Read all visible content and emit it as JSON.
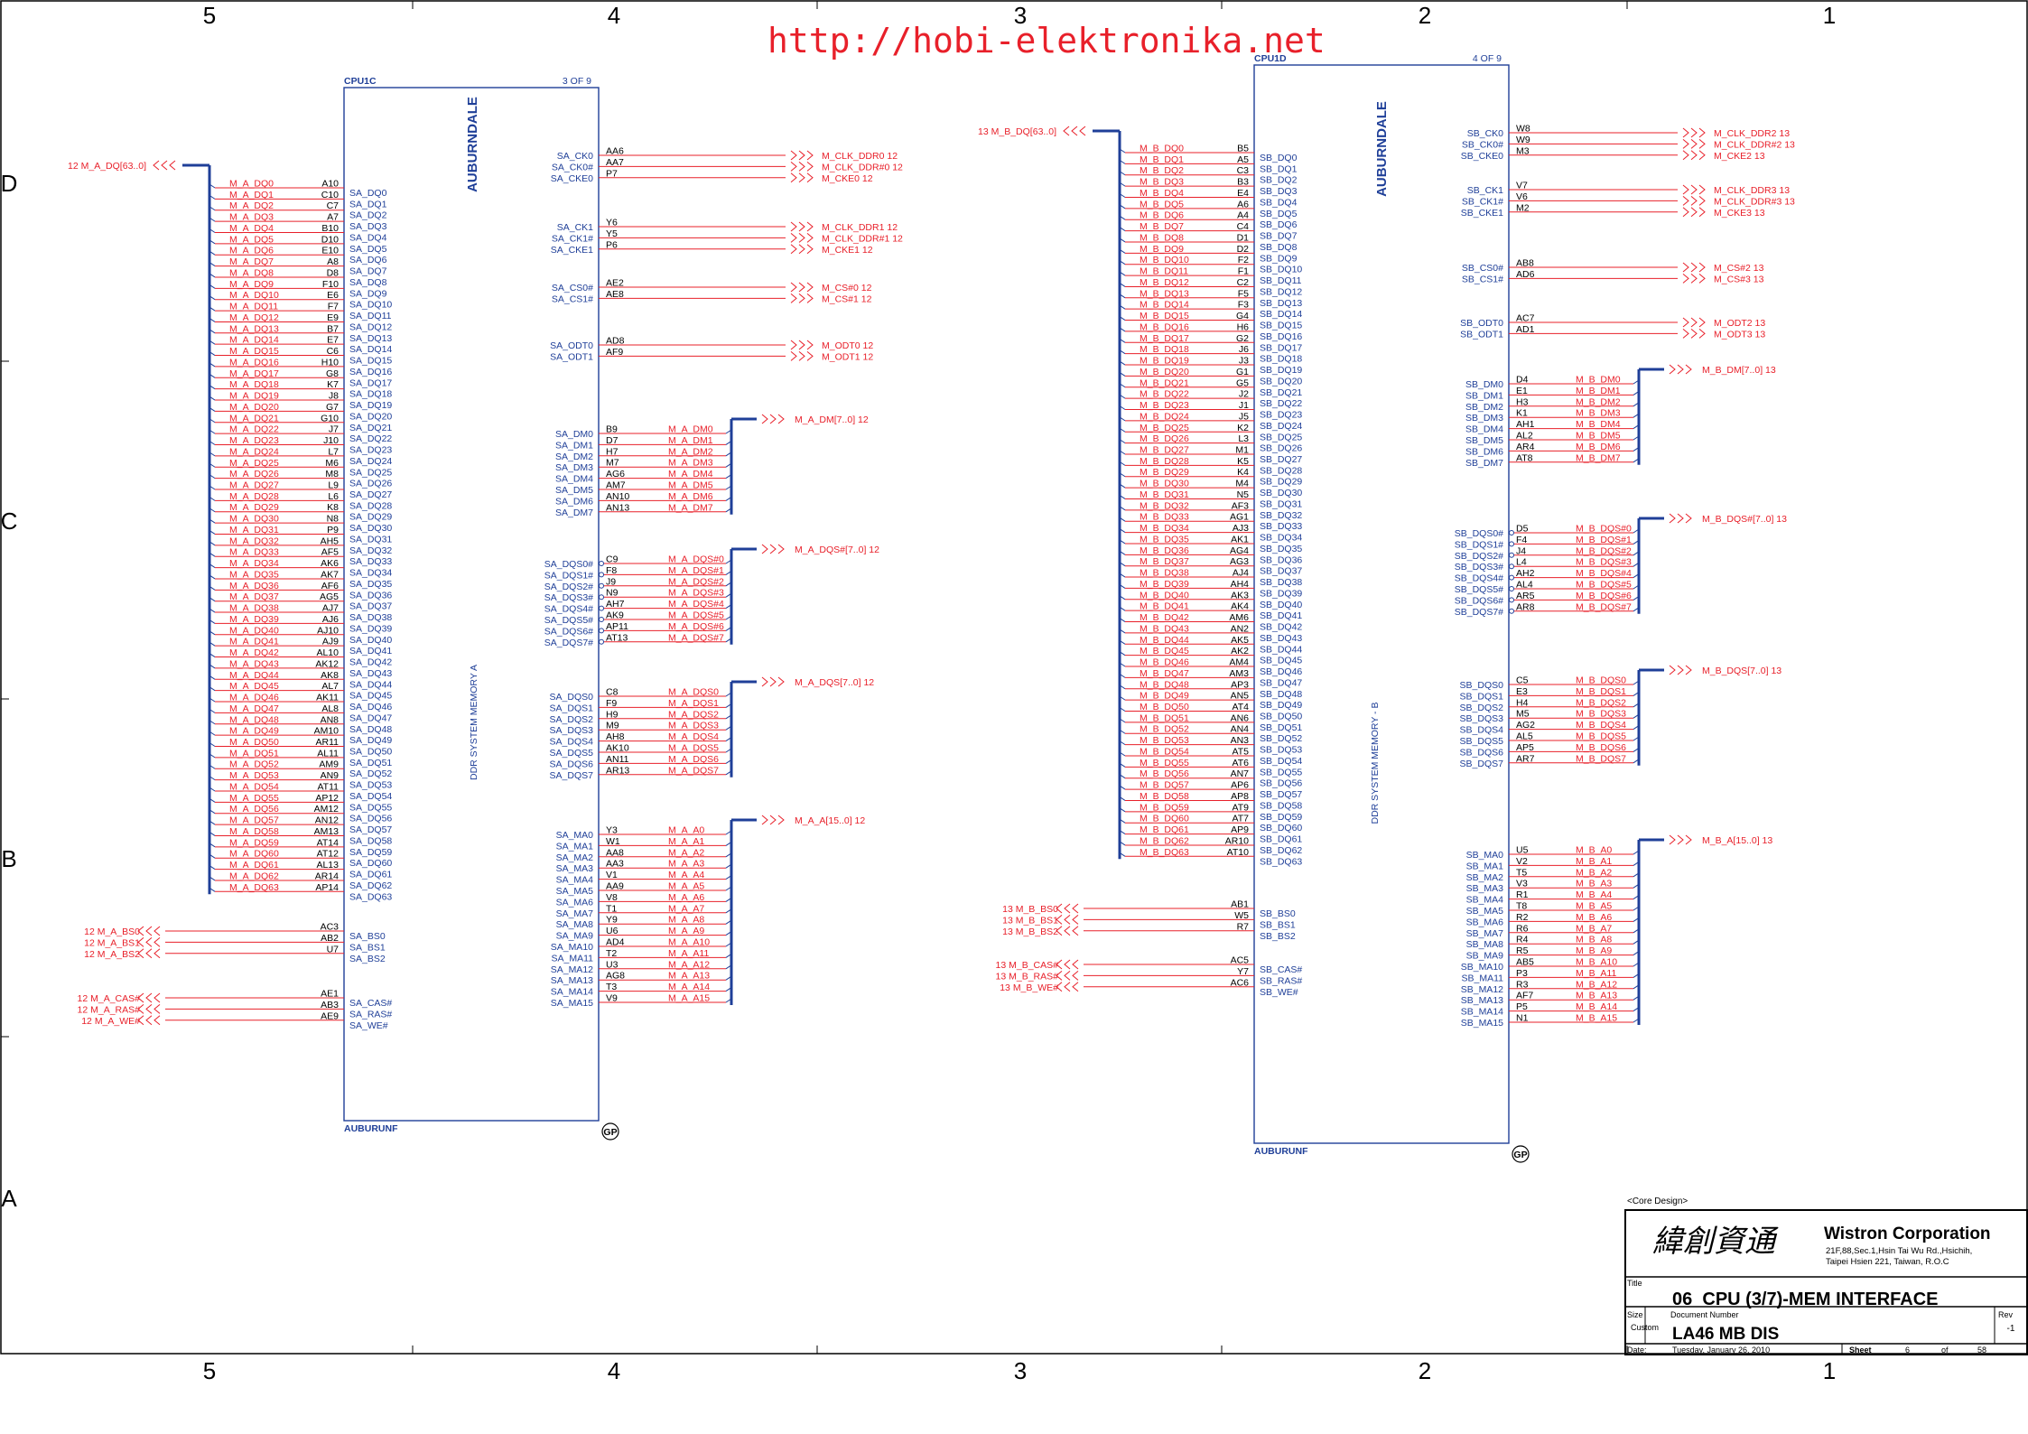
{
  "watermark": "http://hobi-elektronika.net",
  "zones": {
    "columns": [
      "5",
      "4",
      "3",
      "2",
      "1"
    ],
    "rows": [
      "D",
      "C",
      "B",
      "A"
    ]
  },
  "chA": {
    "ref": "CPU1C",
    "part": "3   OF  9",
    "footer": "AUBURUNF",
    "vertical": "AUBURNDALE",
    "title": "DDR  SYSTEM  MEMORY  A",
    "gp": "GP",
    "bus_in": "12  M_A_DQ[63..0]",
    "dq_balls": [
      "A10",
      "C10",
      "C7",
      "A7",
      "B10",
      "D10",
      "E10",
      "A8",
      "D8",
      "F10",
      "E6",
      "F7",
      "E9",
      "B7",
      "E7",
      "C6",
      "H10",
      "G8",
      "K7",
      "J8",
      "G7",
      "G10",
      "J7",
      "J10",
      "L7",
      "M6",
      "M8",
      "L9",
      "L6",
      "K8",
      "N8",
      "P9",
      "AH5",
      "AF5",
      "AK6",
      "AK7",
      "AF6",
      "AG5",
      "AJ7",
      "AJ6",
      "AJ10",
      "AJ9",
      "AL10",
      "AK12",
      "AK8",
      "AL7",
      "AK11",
      "AL8",
      "AN8",
      "AM10",
      "AR11",
      "AL11",
      "AM9",
      "AN9",
      "AT11",
      "AP12",
      "AM12",
      "AN12",
      "AM13",
      "AT14",
      "AT12",
      "AL13",
      "AR14",
      "AP14"
    ],
    "bs": {
      "nets": [
        "12  M_A_BS0",
        "12  M_A_BS1",
        "12  M_A_BS2"
      ],
      "balls": [
        "AC3",
        "AB2",
        "U7"
      ],
      "pins": [
        "SA_BS0",
        "SA_BS1",
        "SA_BS2"
      ]
    },
    "cmd": {
      "nets": [
        "12  M_A_CAS#",
        "12  M_A_RAS#",
        "12  M_A_WE#"
      ],
      "balls": [
        "AE1",
        "AB3",
        "AE9"
      ],
      "pins": [
        "SA_CAS#",
        "SA_RAS#",
        "SA_WE#"
      ]
    },
    "clk": [
      {
        "pins": [
          "SA_CK0",
          "SA_CK0#",
          "SA_CKE0"
        ],
        "balls": [
          "AA6",
          "AA7",
          "P7"
        ],
        "nets": [
          "M_CLK_DDR0  12",
          "M_CLK_DDR#0  12",
          "M_CKE0  12"
        ]
      },
      {
        "pins": [
          "SA_CK1",
          "SA_CK1#",
          "SA_CKE1"
        ],
        "balls": [
          "Y6",
          "Y5",
          "P6"
        ],
        "nets": [
          "M_CLK_DDR1  12",
          "M_CLK_DDR#1  12",
          "M_CKE1  12"
        ]
      },
      {
        "pins": [
          "SA_CS0#",
          "SA_CS1#"
        ],
        "balls": [
          "AE2",
          "AE8"
        ],
        "nets": [
          "M_CS#0  12",
          "M_CS#1  12"
        ]
      },
      {
        "pins": [
          "SA_ODT0",
          "SA_ODT1"
        ],
        "balls": [
          "AD8",
          "AF9"
        ],
        "nets": [
          "M_ODT0  12",
          "M_ODT1  12"
        ]
      }
    ],
    "dm": {
      "balls": [
        "B9",
        "D7",
        "H7",
        "M7",
        "AG6",
        "AM7",
        "AN10",
        "AN13"
      ],
      "bus": "M_A_DM[7..0]  12"
    },
    "dqsn": {
      "balls": [
        "C9",
        "F8",
        "J9",
        "N9",
        "AH7",
        "AK9",
        "AP11",
        "AT13"
      ],
      "bus": "M_A_DQS#[7..0]  12"
    },
    "dqs": {
      "balls": [
        "C8",
        "F9",
        "H9",
        "M9",
        "AH8",
        "AK10",
        "AN11",
        "AR13"
      ],
      "bus": "M_A_DQS[7..0]  12"
    },
    "ma": {
      "balls": [
        "Y3",
        "W1",
        "AA8",
        "AA3",
        "V1",
        "AA9",
        "V8",
        "T1",
        "Y9",
        "U6",
        "AD4",
        "T2",
        "U3",
        "AG8",
        "T3",
        "V9"
      ],
      "bus": "M_A_A[15..0]  12"
    }
  },
  "chB": {
    "ref": "CPU1D",
    "part": "4   OF  9",
    "footer": "AUBURUNF",
    "vertical": "AUBURNDALE",
    "title": "DDR  SYSTEM  MEMORY  -  B",
    "gp": "GP",
    "bus_in": "13  M_B_DQ[63..0]",
    "dq_balls": [
      "B5",
      "A5",
      "C3",
      "B3",
      "E4",
      "A6",
      "A4",
      "C4",
      "D1",
      "D2",
      "F2",
      "F1",
      "C2",
      "F5",
      "F3",
      "G4",
      "H6",
      "G2",
      "J6",
      "J3",
      "G1",
      "G5",
      "J2",
      "J1",
      "J5",
      "K2",
      "L3",
      "M1",
      "K5",
      "K4",
      "M4",
      "N5",
      "AF3",
      "AG1",
      "AJ3",
      "AK1",
      "AG4",
      "AG3",
      "AJ4",
      "AH4",
      "AK3",
      "AK4",
      "AM6",
      "AN2",
      "AK5",
      "AK2",
      "AM4",
      "AM3",
      "AP3",
      "AN5",
      "AT4",
      "AN6",
      "AN4",
      "AN3",
      "AT5",
      "AT6",
      "AN7",
      "AP6",
      "AP8",
      "AT9",
      "AT7",
      "AP9",
      "AR10",
      "AT10"
    ],
    "bs": {
      "nets": [
        "13  M_B_BS0",
        "13  M_B_BS1",
        "13  M_B_BS2"
      ],
      "balls": [
        "AB1",
        "W5",
        "R7"
      ],
      "pins": [
        "SB_BS0",
        "SB_BS1",
        "SB_BS2"
      ]
    },
    "cmd": {
      "nets": [
        "13  M_B_CAS#",
        "13  M_B_RAS#",
        "13  M_B_WE#"
      ],
      "balls": [
        "AC5",
        "Y7",
        "AC6"
      ],
      "pins": [
        "SB_CAS#",
        "SB_RAS#",
        "SB_WE#"
      ]
    },
    "clk": [
      {
        "pins": [
          "SB_CK0",
          "SB_CK0#",
          "SB_CKE0"
        ],
        "balls": [
          "W8",
          "W9",
          "M3"
        ],
        "nets": [
          "M_CLK_DDR2  13",
          "M_CLK_DDR#2  13",
          "M_CKE2  13"
        ]
      },
      {
        "pins": [
          "SB_CK1",
          "SB_CK1#",
          "SB_CKE1"
        ],
        "balls": [
          "V7",
          "V6",
          "M2"
        ],
        "nets": [
          "M_CLK_DDR3  13",
          "M_CLK_DDR#3  13",
          "M_CKE3  13"
        ]
      },
      {
        "pins": [
          "SB_CS0#",
          "SB_CS1#"
        ],
        "balls": [
          "AB8",
          "AD6"
        ],
        "nets": [
          "M_CS#2  13",
          "M_CS#3  13"
        ]
      },
      {
        "pins": [
          "SB_ODT0",
          "SB_ODT1"
        ],
        "balls": [
          "AC7",
          "AD1"
        ],
        "nets": [
          "M_ODT2  13",
          "M_ODT3  13"
        ]
      }
    ],
    "dm": {
      "balls": [
        "D4",
        "E1",
        "H3",
        "K1",
        "AH1",
        "AL2",
        "AR4",
        "AT8"
      ],
      "bus": "M_B_DM[7..0]  13"
    },
    "dqsn": {
      "balls": [
        "D5",
        "F4",
        "J4",
        "L4",
        "AH2",
        "AL4",
        "AR5",
        "AR8"
      ],
      "bus": "M_B_DQS#[7..0]  13"
    },
    "dqs": {
      "balls": [
        "C5",
        "E3",
        "H4",
        "M5",
        "AG2",
        "AL5",
        "AP5",
        "AR7"
      ],
      "bus": "M_B_DQS[7..0]  13"
    },
    "ma": {
      "balls": [
        "U5",
        "V2",
        "T5",
        "V3",
        "R1",
        "T8",
        "R2",
        "R6",
        "R4",
        "R5",
        "AB5",
        "P3",
        "R3",
        "AF7",
        "P5",
        "N1"
      ],
      "bus": "M_B_A[15..0]  13"
    }
  },
  "titleblock": {
    "core": "<Core Design>",
    "chinese": "緯創資通",
    "company": "Wistron Corporation",
    "addr1": "21F,88,Sec.1,Hsin Tai Wu Rd.,Hsichih,",
    "addr2": "Taipei Hsien 221, Taiwan, R.O.C",
    "title_lbl": "Title",
    "title": "06_CPU (3/7)-MEM INTERFACE",
    "size_lbl": "Size",
    "size": "Custom",
    "docnum_lbl": "Document Number",
    "docnum": "LA46 MB DIS",
    "rev_lbl": "Rev",
    "rev": "-1",
    "date_lbl": "Date:",
    "date": "Tuesday, January 26, 2010",
    "sheet_lbl": "Sheet",
    "sheet": "6",
    "of_lbl": "of",
    "total": "58"
  }
}
